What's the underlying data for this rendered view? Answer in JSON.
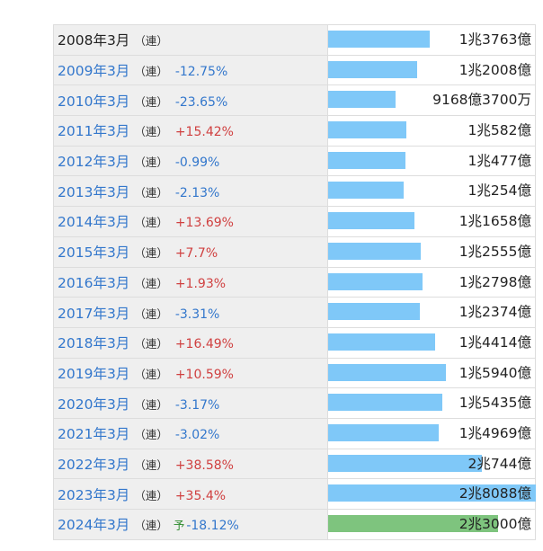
{
  "colors": {
    "bar_actual": "#7fc8f8",
    "bar_forecast": "#7ec47e",
    "change_negative": "#3377cc",
    "change_positive": "#d04040"
  },
  "chart_data": {
    "type": "bar",
    "orientation": "horizontal",
    "unit": "億円",
    "rows": [
      {
        "year": "2008年3月",
        "basis": "（連）",
        "forecast": "",
        "change": "",
        "amount": "1兆3763億",
        "value": 13763
      },
      {
        "year": "2009年3月",
        "basis": "（連）",
        "forecast": "",
        "change": "-12.75%",
        "amount": "1兆2008億",
        "value": 12008
      },
      {
        "year": "2010年3月",
        "basis": "（連）",
        "forecast": "",
        "change": "-23.65%",
        "amount": "9168億3700万",
        "value": 9168.37
      },
      {
        "year": "2011年3月",
        "basis": "（連）",
        "forecast": "",
        "change": "+15.42%",
        "amount": "1兆582億",
        "value": 10582
      },
      {
        "year": "2012年3月",
        "basis": "（連）",
        "forecast": "",
        "change": "-0.99%",
        "amount": "1兆477億",
        "value": 10477
      },
      {
        "year": "2013年3月",
        "basis": "（連）",
        "forecast": "",
        "change": "-2.13%",
        "amount": "1兆254億",
        "value": 10254
      },
      {
        "year": "2014年3月",
        "basis": "（連）",
        "forecast": "",
        "change": "+13.69%",
        "amount": "1兆1658億",
        "value": 11658
      },
      {
        "year": "2015年3月",
        "basis": "（連）",
        "forecast": "",
        "change": "+7.7%",
        "amount": "1兆2555億",
        "value": 12555
      },
      {
        "year": "2016年3月",
        "basis": "（連）",
        "forecast": "",
        "change": "+1.93%",
        "amount": "1兆2798億",
        "value": 12798
      },
      {
        "year": "2017年3月",
        "basis": "（連）",
        "forecast": "",
        "change": "-3.31%",
        "amount": "1兆2374億",
        "value": 12374
      },
      {
        "year": "2018年3月",
        "basis": "（連）",
        "forecast": "",
        "change": "+16.49%",
        "amount": "1兆4414億",
        "value": 14414
      },
      {
        "year": "2019年3月",
        "basis": "（連）",
        "forecast": "",
        "change": "+10.59%",
        "amount": "1兆5940億",
        "value": 15940
      },
      {
        "year": "2020年3月",
        "basis": "（連）",
        "forecast": "",
        "change": "-3.17%",
        "amount": "1兆5435億",
        "value": 15435
      },
      {
        "year": "2021年3月",
        "basis": "（連）",
        "forecast": "",
        "change": "-3.02%",
        "amount": "1兆4969億",
        "value": 14969
      },
      {
        "year": "2022年3月",
        "basis": "（連）",
        "forecast": "",
        "change": "+38.58%",
        "amount": "2兆744億",
        "value": 20744
      },
      {
        "year": "2023年3月",
        "basis": "（連）",
        "forecast": "",
        "change": "+35.4%",
        "amount": "2兆8088億",
        "value": 28088
      },
      {
        "year": "2024年3月",
        "basis": "（連）",
        "forecast": "予",
        "change": "-18.12%",
        "amount": "2兆3000億",
        "value": 23000
      }
    ],
    "xlim": [
      0,
      28088
    ]
  }
}
